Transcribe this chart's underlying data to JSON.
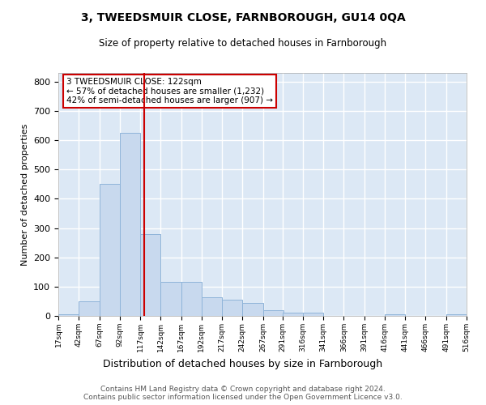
{
  "title": "3, TWEEDSMUIR CLOSE, FARNBOROUGH, GU14 0QA",
  "subtitle": "Size of property relative to detached houses in Farnborough",
  "xlabel": "Distribution of detached houses by size in Farnborough",
  "ylabel": "Number of detached properties",
  "bar_color": "#c8d9ee",
  "bar_edge_color": "#8fb4d9",
  "background_color": "#dce8f5",
  "grid_color": "#ffffff",
  "annotation_text": "3 TWEEDSMUIR CLOSE: 122sqm\n← 57% of detached houses are smaller (1,232)\n42% of semi-detached houses are larger (907) →",
  "vline_x": 122,
  "vline_color": "#cc0000",
  "footer_text": "Contains HM Land Registry data © Crown copyright and database right 2024.\nContains public sector information licensed under the Open Government Licence v3.0.",
  "bin_edges": [
    17,
    42,
    67,
    92,
    117,
    142,
    167,
    192,
    217,
    242,
    267,
    291,
    316,
    341,
    366,
    391,
    416,
    441,
    466,
    491,
    516
  ],
  "bin_labels": [
    "17sqm",
    "42sqm",
    "67sqm",
    "92sqm",
    "117sqm",
    "142sqm",
    "167sqm",
    "192sqm",
    "217sqm",
    "242sqm",
    "267sqm",
    "291sqm",
    "316sqm",
    "341sqm",
    "366sqm",
    "391sqm",
    "416sqm",
    "441sqm",
    "466sqm",
    "491sqm",
    "516sqm"
  ],
  "counts": [
    5,
    50,
    450,
    625,
    280,
    115,
    115,
    65,
    55,
    45,
    20,
    10,
    10,
    0,
    0,
    0,
    5,
    0,
    0,
    5
  ],
  "ylim": [
    0,
    830
  ],
  "yticks": [
    0,
    100,
    200,
    300,
    400,
    500,
    600,
    700,
    800
  ]
}
